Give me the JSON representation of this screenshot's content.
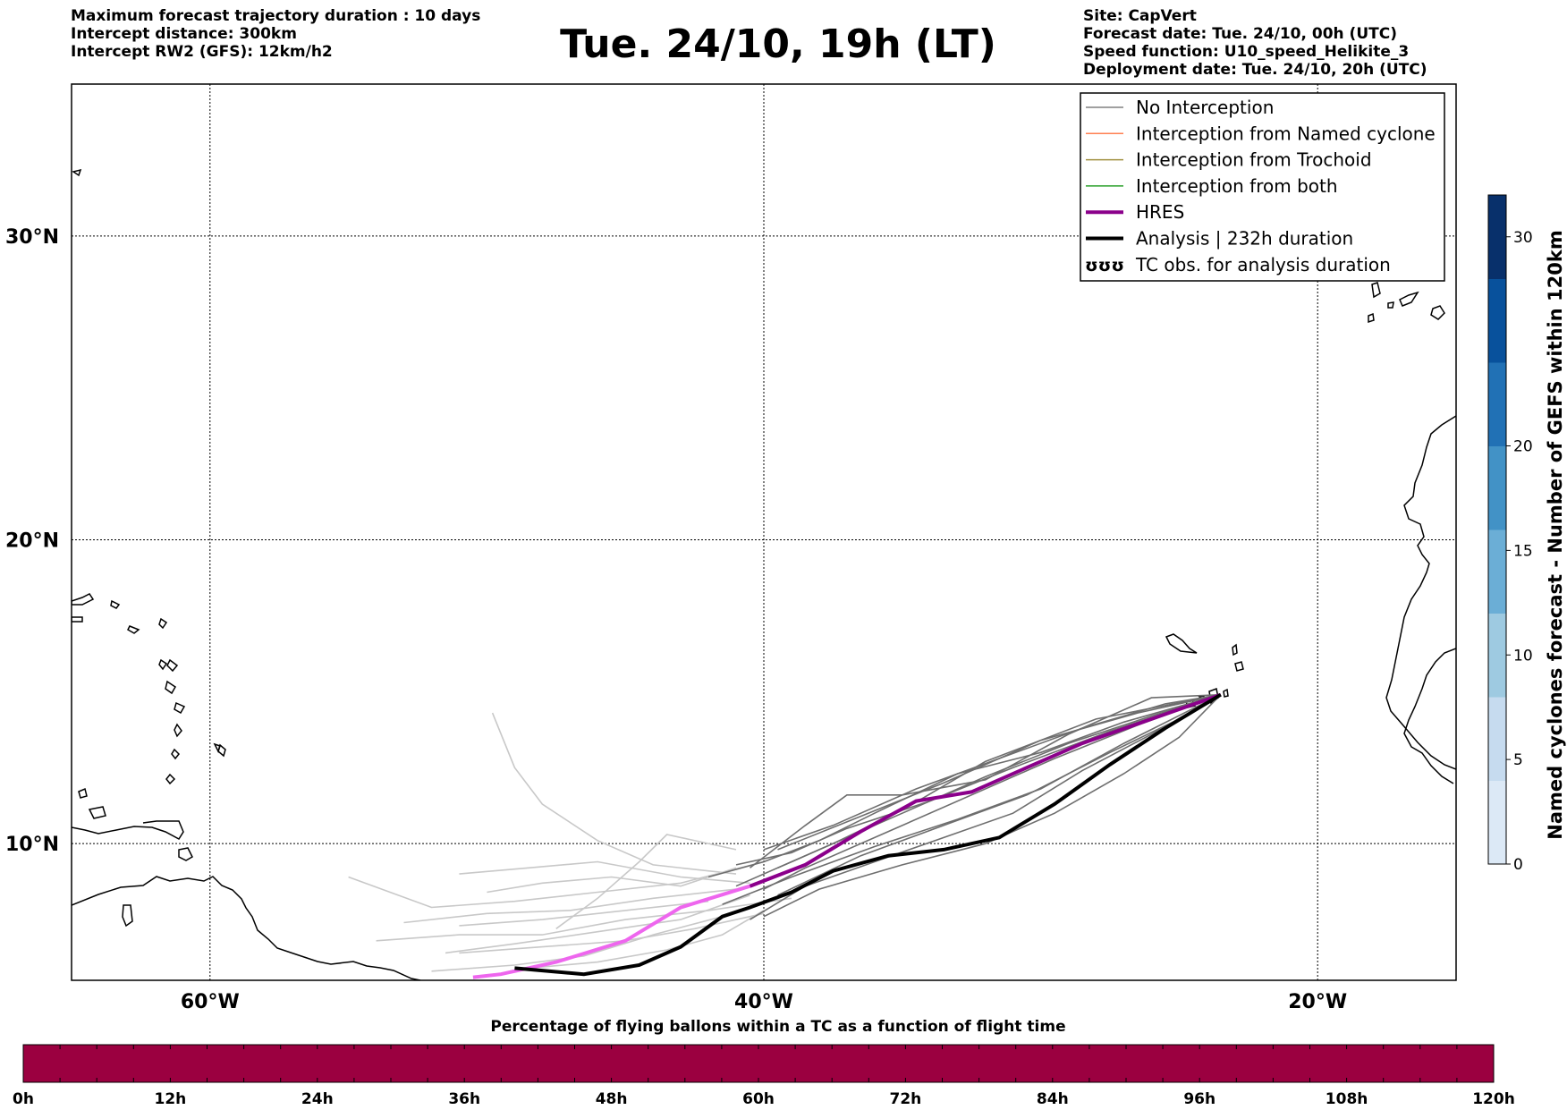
{
  "header_left": [
    "Maximum forecast trajectory duration : 10 days",
    "Intercept distance: 300km",
    "Intercept RW2 (GFS):  12km/h2"
  ],
  "title": "Tue. 24/10, 19h (LT)",
  "header_right": [
    "Site: CapVert",
    "Forecast date: Tue. 24/10, 00h (UTC)",
    "Speed function: U10_speed_Helikite_3",
    "Deployment date: Tue. 24/10, 20h (UTC)"
  ],
  "map": {
    "lon_range": [
      -65,
      -15
    ],
    "lat_range": [
      5.5,
      35
    ],
    "lat_ticks": [
      {
        "value": 30,
        "label": "30°N"
      },
      {
        "value": 20,
        "label": "20°N"
      },
      {
        "value": 10,
        "label": "10°N"
      }
    ],
    "lon_ticks": [
      {
        "value": -60,
        "label": "60°W"
      },
      {
        "value": -40,
        "label": "40°W"
      },
      {
        "value": -20,
        "label": "20°W"
      }
    ],
    "gridlines": "dotted"
  },
  "legend": {
    "placement": "top-right",
    "items": [
      {
        "label": "No Interception",
        "color": "#808080",
        "style": "thin"
      },
      {
        "label": "Interception from Named cyclone",
        "color": "#ff7f50",
        "style": "thin"
      },
      {
        "label": "Interception from Trochoid",
        "color": "#a09040",
        "style": "thin"
      },
      {
        "label": "Interception from both",
        "color": "#2ca02c",
        "style": "thin"
      },
      {
        "label": "HRES",
        "color": "#8b008b",
        "style": "thick"
      },
      {
        "label": "Analysis | 232h duration",
        "color": "#000000",
        "style": "thick"
      },
      {
        "label": "TC obs. for analysis duration",
        "color": "#000000",
        "style": "symbol"
      }
    ]
  },
  "colorbar_right": {
    "label": "Named cyclones forecast - Number of GEFS within 120km",
    "range": [
      0,
      32
    ],
    "ticks": [
      {
        "value": 0,
        "label": "0"
      },
      {
        "value": 5,
        "label": "5"
      },
      {
        "value": 10,
        "label": "10"
      },
      {
        "value": 15,
        "label": "15"
      },
      {
        "value": 20,
        "label": "20"
      },
      {
        "value": 30,
        "label": "30"
      }
    ],
    "colors": [
      "#dce9f6",
      "#c6dbef",
      "#9ecae1",
      "#6baed6",
      "#4292c6",
      "#2171b5",
      "#08519c",
      "#08306b"
    ]
  },
  "colorbar_bottom": {
    "title": "Percentage of flying ballons within a TC as a function of flight time",
    "fill_color": "#9b0040",
    "ticks": [
      "0h",
      "12h",
      "24h",
      "36h",
      "48h",
      "60h",
      "72h",
      "84h",
      "96h",
      "108h",
      "120h"
    ]
  },
  "trajectories": {
    "start": {
      "lon": -23.5,
      "lat": 14.9
    },
    "hres": [
      [
        -23.5,
        14.9
      ],
      [
        -26,
        14.1
      ],
      [
        -28.5,
        13.3
      ],
      [
        -30.5,
        12.5
      ],
      [
        -32.5,
        11.7
      ],
      [
        -34.5,
        11.4
      ],
      [
        -36.5,
        10.4
      ],
      [
        -38.5,
        9.3
      ],
      [
        -40.5,
        8.6
      ],
      [
        -43,
        7.9
      ],
      [
        -45,
        6.8
      ],
      [
        -47.5,
        6.1
      ],
      [
        -49.5,
        5.7
      ],
      [
        -50.5,
        5.6
      ]
    ],
    "analysis": [
      [
        -23.5,
        14.9
      ],
      [
        -25.5,
        13.8
      ],
      [
        -27.5,
        12.6
      ],
      [
        -29.5,
        11.3
      ],
      [
        -31.5,
        10.2
      ],
      [
        -33.5,
        9.8
      ],
      [
        -35.5,
        9.6
      ],
      [
        -37.5,
        9.1
      ],
      [
        -39,
        8.4
      ],
      [
        -40.5,
        7.9
      ],
      [
        -41.5,
        7.6
      ],
      [
        -43,
        6.6
      ],
      [
        -44.5,
        6.0
      ],
      [
        -46.5,
        5.7
      ],
      [
        -49,
        5.9
      ]
    ],
    "members_dark": [
      [
        [
          -23.5,
          14.9
        ],
        [
          -26,
          14.2
        ],
        [
          -29,
          13.3
        ],
        [
          -32,
          12.2
        ],
        [
          -35,
          11.0
        ],
        [
          -38,
          9.8
        ],
        [
          -41,
          8.6
        ]
      ],
      [
        [
          -23.5,
          14.9
        ],
        [
          -26.5,
          13.9
        ],
        [
          -29.5,
          12.8
        ],
        [
          -32.5,
          11.6
        ],
        [
          -35.5,
          10.4
        ],
        [
          -38.5,
          9.2
        ],
        [
          -40,
          8.5
        ]
      ],
      [
        [
          -23.5,
          14.9
        ],
        [
          -27,
          14.0
        ],
        [
          -30,
          13.0
        ],
        [
          -33,
          12.3
        ],
        [
          -36,
          11.0
        ],
        [
          -38,
          10.1
        ],
        [
          -40,
          9.4
        ],
        [
          -42,
          8.9
        ]
      ],
      [
        [
          -23.5,
          14.9
        ],
        [
          -25.5,
          14.6
        ],
        [
          -28.5,
          13.8
        ],
        [
          -31.5,
          12.8
        ],
        [
          -34.5,
          11.8
        ],
        [
          -37.5,
          10.6
        ],
        [
          -40,
          9.8
        ]
      ],
      [
        [
          -23.5,
          14.9
        ],
        [
          -25,
          13.5
        ],
        [
          -27,
          12.3
        ],
        [
          -29.5,
          11.0
        ],
        [
          -32,
          10.0
        ],
        [
          -35,
          9.3
        ],
        [
          -38,
          8.5
        ],
        [
          -40,
          7.6
        ]
      ],
      [
        [
          -23.5,
          14.9
        ],
        [
          -26,
          13.6
        ],
        [
          -28.5,
          12.4
        ],
        [
          -31,
          11.0
        ],
        [
          -33.5,
          10.2
        ],
        [
          -36,
          9.4
        ],
        [
          -38.5,
          8.6
        ],
        [
          -40.5,
          7.5
        ]
      ],
      [
        [
          -23.5,
          14.9
        ],
        [
          -27.5,
          13.7
        ],
        [
          -31,
          12.5
        ],
        [
          -34,
          11.4
        ],
        [
          -37,
          10.5
        ],
        [
          -39,
          9.7
        ],
        [
          -41,
          9.3
        ]
      ],
      [
        [
          -23.5,
          14.9
        ],
        [
          -26,
          14.8
        ],
        [
          -29,
          13.6
        ],
        [
          -32,
          12.1
        ],
        [
          -35,
          11.6
        ],
        [
          -37,
          11.6
        ],
        [
          -38.5,
          10.6
        ],
        [
          -40.5,
          9.2
        ]
      ],
      [
        [
          -23.5,
          14.9
        ],
        [
          -27,
          13.3
        ],
        [
          -30,
          11.8
        ],
        [
          -33,
          10.8
        ],
        [
          -36,
          9.9
        ],
        [
          -39,
          8.9
        ],
        [
          -41.5,
          8.0
        ]
      ],
      [
        [
          -23.5,
          14.9
        ],
        [
          -26.5,
          14.3
        ],
        [
          -30,
          13.4
        ],
        [
          -33.5,
          12.0
        ],
        [
          -36.5,
          10.9
        ],
        [
          -39.5,
          9.8
        ]
      ],
      [
        [
          -23.5,
          14.9
        ],
        [
          -25,
          14.1
        ],
        [
          -27.5,
          13.0
        ],
        [
          -30.5,
          11.6
        ],
        [
          -33.5,
          10.6
        ],
        [
          -36.5,
          9.6
        ],
        [
          -39.5,
          8.3
        ]
      ],
      [
        [
          -23.5,
          14.9
        ],
        [
          -28,
          14.1
        ],
        [
          -32,
          12.7
        ],
        [
          -35,
          11.1
        ],
        [
          -37.5,
          10.0
        ],
        [
          -39.5,
          9.2
        ]
      ]
    ],
    "members_light": [
      [
        [
          -40,
          9.4
        ],
        [
          -43,
          8.7
        ],
        [
          -46,
          8.4
        ],
        [
          -49,
          8.1
        ],
        [
          -52,
          7.9
        ],
        [
          -55,
          8.9
        ]
      ],
      [
        [
          -39,
          8.2
        ],
        [
          -42,
          7.8
        ],
        [
          -45,
          7.5
        ],
        [
          -48,
          7.0
        ],
        [
          -51,
          7.0
        ],
        [
          -54,
          6.8
        ]
      ],
      [
        [
          -40,
          7.7
        ],
        [
          -42.5,
          7.2
        ],
        [
          -45,
          6.8
        ],
        [
          -48,
          6.6
        ],
        [
          -51,
          6.4
        ]
      ],
      [
        [
          -41,
          9.0
        ],
        [
          -44,
          9.3
        ],
        [
          -46,
          10.1
        ],
        [
          -48,
          11.3
        ],
        [
          -49,
          12.5
        ],
        [
          -49.8,
          14.3
        ]
      ],
      [
        [
          -41,
          8.5
        ],
        [
          -44,
          8.2
        ],
        [
          -47,
          7.8
        ],
        [
          -50,
          7.7
        ],
        [
          -53,
          7.4
        ]
      ],
      [
        [
          -41.5,
          7.6
        ],
        [
          -44,
          7.0
        ],
        [
          -46.5,
          6.3
        ],
        [
          -49,
          6.0
        ],
        [
          -52,
          5.8
        ]
      ],
      [
        [
          -40.5,
          8.7
        ],
        [
          -43,
          8.9
        ],
        [
          -46,
          9.4
        ],
        [
          -48.5,
          9.2
        ],
        [
          -51,
          9.0
        ]
      ],
      [
        [
          -42,
          8.1
        ],
        [
          -45,
          7.8
        ],
        [
          -48,
          7.5
        ],
        [
          -51,
          7.3
        ]
      ],
      [
        [
          -41,
          9.8
        ],
        [
          -43.5,
          10.3
        ],
        [
          -44.5,
          9.4
        ],
        [
          -46,
          8.2
        ],
        [
          -47.5,
          7.2
        ]
      ],
      [
        [
          -40.5,
          8.3
        ],
        [
          -43,
          7.5
        ],
        [
          -46,
          7.1
        ],
        [
          -49,
          6.7
        ],
        [
          -51.5,
          6.4
        ]
      ],
      [
        [
          -40,
          7.8
        ],
        [
          -41.5,
          7.0
        ],
        [
          -43.5,
          6.5
        ],
        [
          -46,
          6.1
        ],
        [
          -48.5,
          5.9
        ]
      ],
      [
        [
          -41,
          9.2
        ],
        [
          -43,
          8.6
        ],
        [
          -45.5,
          8.9
        ],
        [
          -48,
          8.7
        ],
        [
          -50,
          8.4
        ]
      ]
    ]
  }
}
